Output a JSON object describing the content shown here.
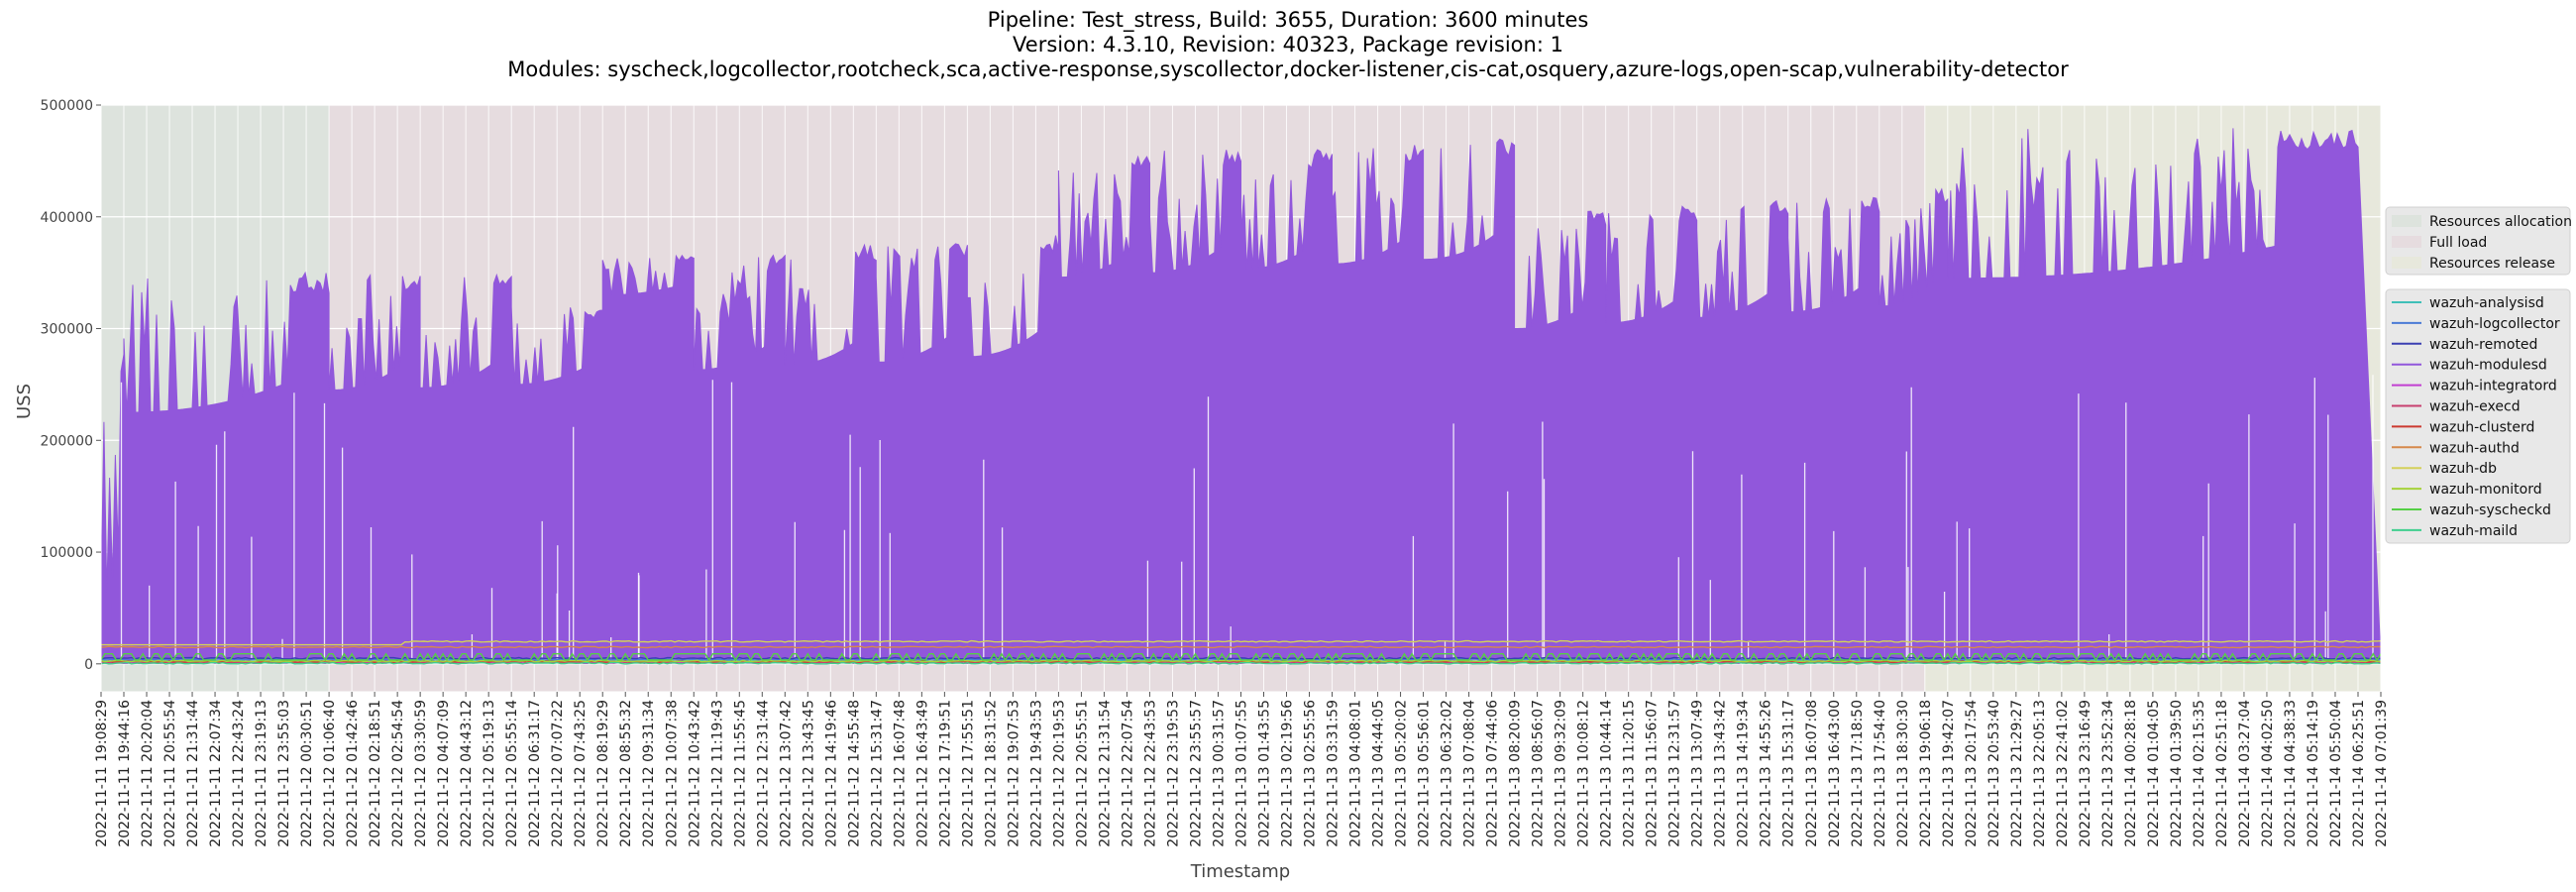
{
  "title_lines": [
    "Pipeline: Test_stress, Build: 3655, Duration: 3600 minutes",
    "Version: 4.3.10, Revision: 40323, Package revision: 1",
    "Modules: syscheck,logcollector,rootcheck,sca,active-response,syscollector,docker-listener,cis-cat,osquery,azure-logs,open-scap,vulnerability-detector"
  ],
  "chart_data": {
    "type": "line",
    "xlabel": "Timestamp",
    "ylabel": "USS",
    "ylim": [
      -25000,
      500000
    ],
    "yticks": [
      0,
      100000,
      200000,
      300000,
      400000,
      500000
    ],
    "grid": true,
    "x_ticklabels": [
      "2022-11-11 19:08:29",
      "2022-11-11 19:44:16",
      "2022-11-11 20:20:04",
      "2022-11-11 20:55:54",
      "2022-11-11 21:31:44",
      "2022-11-11 22:07:34",
      "2022-11-11 22:43:24",
      "2022-11-11 23:19:13",
      "2022-11-11 23:55:03",
      "2022-11-12 00:30:51",
      "2022-11-12 01:06:40",
      "2022-11-12 01:42:46",
      "2022-11-12 02:18:51",
      "2022-11-12 02:54:54",
      "2022-11-12 03:30:59",
      "2022-11-12 04:07:09",
      "2022-11-12 04:43:12",
      "2022-11-12 05:19:13",
      "2022-11-12 05:55:14",
      "2022-11-12 06:31:17",
      "2022-11-12 07:07:22",
      "2022-11-12 07:43:25",
      "2022-11-12 08:19:29",
      "2022-11-12 08:55:32",
      "2022-11-12 09:31:34",
      "2022-11-12 10:07:38",
      "2022-11-12 10:43:42",
      "2022-11-12 11:19:43",
      "2022-11-12 11:55:45",
      "2022-11-12 12:31:44",
      "2022-11-12 13:07:42",
      "2022-11-12 13:43:45",
      "2022-11-12 14:19:46",
      "2022-11-12 14:55:48",
      "2022-11-12 15:31:47",
      "2022-11-12 16:07:48",
      "2022-11-12 16:43:49",
      "2022-11-12 17:19:51",
      "2022-11-12 17:55:51",
      "2022-11-12 18:31:52",
      "2022-11-12 19:07:53",
      "2022-11-12 19:43:53",
      "2022-11-12 20:19:53",
      "2022-11-12 20:55:51",
      "2022-11-12 21:31:54",
      "2022-11-12 22:07:54",
      "2022-11-12 22:43:53",
      "2022-11-12 23:19:53",
      "2022-11-12 23:55:57",
      "2022-11-13 00:31:57",
      "2022-11-13 01:07:55",
      "2022-11-13 01:43:55",
      "2022-11-13 02:19:56",
      "2022-11-13 02:55:56",
      "2022-11-13 03:31:59",
      "2022-11-13 04:08:01",
      "2022-11-13 04:44:05",
      "2022-11-13 05:20:02",
      "2022-11-13 05:56:01",
      "2022-11-13 06:32:02",
      "2022-11-13 07:08:04",
      "2022-11-13 07:44:06",
      "2022-11-13 08:20:09",
      "2022-11-13 08:56:07",
      "2022-11-13 09:32:09",
      "2022-11-13 10:08:12",
      "2022-11-13 10:44:14",
      "2022-11-13 11:20:15",
      "2022-11-13 11:56:07",
      "2022-11-13 12:31:57",
      "2022-11-13 13:07:49",
      "2022-11-13 13:43:42",
      "2022-11-13 14:19:34",
      "2022-11-13 14:55:26",
      "2022-11-13 15:31:17",
      "2022-11-13 16:07:08",
      "2022-11-13 16:43:00",
      "2022-11-13 17:18:50",
      "2022-11-13 17:54:40",
      "2022-11-13 18:30:30",
      "2022-11-13 19:06:18",
      "2022-11-13 19:42:07",
      "2022-11-13 20:17:54",
      "2022-11-13 20:53:40",
      "2022-11-13 21:29:27",
      "2022-11-13 22:05:13",
      "2022-11-13 22:41:02",
      "2022-11-13 23:16:49",
      "2022-11-13 23:52:34",
      "2022-11-14 00:28:18",
      "2022-11-14 01:04:05",
      "2022-11-14 01:39:50",
      "2022-11-14 02:15:35",
      "2022-11-14 02:51:18",
      "2022-11-14 03:27:04",
      "2022-11-14 04:02:50",
      "2022-11-14 04:38:33",
      "2022-11-14 05:14:19",
      "2022-11-14 05:50:04",
      "2022-11-14 06:25:51",
      "2022-11-14 07:01:39"
    ],
    "phases": [
      {
        "name": "Resources allocation",
        "start": "2022-11-11 19:08:29",
        "end": "2022-11-12 01:06:40",
        "color": "#dde3dd"
      },
      {
        "name": "Full load",
        "start": "2022-11-12 01:06:40",
        "end": "2022-11-13 19:06:18",
        "color": "#e6dcdf"
      },
      {
        "name": "Resources release",
        "start": "2022-11-13 19:06:18",
        "end": "2022-11-14 07:01:39",
        "color": "#e7e8dc"
      }
    ],
    "modulesd_segments": [
      {
        "start": 0,
        "end": 1,
        "base": 60000,
        "top": 290000
      },
      {
        "start": 1,
        "end": 10,
        "base": 225000,
        "top": 350000
      },
      {
        "start": 10,
        "end": 14,
        "base": 245000,
        "top": 350000
      },
      {
        "start": 14,
        "end": 18,
        "base": 247000,
        "top": 350000
      },
      {
        "start": 18,
        "end": 22,
        "base": 250000,
        "top": 320000
      },
      {
        "start": 22,
        "end": 26,
        "base": 330000,
        "top": 366000
      },
      {
        "start": 26,
        "end": 30,
        "base": 263000,
        "top": 366000
      },
      {
        "start": 30,
        "end": 34,
        "base": 267000,
        "top": 375000
      },
      {
        "start": 34,
        "end": 38,
        "base": 270000,
        "top": 380000
      },
      {
        "start": 38,
        "end": 42,
        "base": 275000,
        "top": 385000
      },
      {
        "start": 42,
        "end": 46,
        "base": 346000,
        "top": 455000
      },
      {
        "start": 46,
        "end": 50,
        "base": 350000,
        "top": 460000
      },
      {
        "start": 50,
        "end": 54,
        "base": 353000,
        "top": 460000
      },
      {
        "start": 54,
        "end": 58,
        "base": 358000,
        "top": 465000
      },
      {
        "start": 58,
        "end": 62,
        "base": 362000,
        "top": 470000
      },
      {
        "start": 62,
        "end": 66,
        "base": 300000,
        "top": 405000
      },
      {
        "start": 66,
        "end": 70,
        "base": 305000,
        "top": 410000
      },
      {
        "start": 70,
        "end": 74,
        "base": 310000,
        "top": 415000
      },
      {
        "start": 74,
        "end": 78,
        "base": 315000,
        "top": 420000
      },
      {
        "start": 78,
        "end": 81,
        "base": 320000,
        "top": 425000
      },
      {
        "start": 81,
        "end": 99,
        "base": 345000,
        "top": 480000
      }
    ],
    "series": [
      {
        "name": "wazuh-analysisd",
        "color": "#3fbfb8",
        "value": 3000
      },
      {
        "name": "wazuh-logcollector",
        "color": "#4a7ad6",
        "value": 4000
      },
      {
        "name": "wazuh-remoted",
        "color": "#3b3fb2",
        "value": 5000
      },
      {
        "name": "wazuh-modulesd",
        "color": "#9157db",
        "value": 345000
      },
      {
        "name": "wazuh-integratord",
        "color": "#c13fd1",
        "value": 1000
      },
      {
        "name": "wazuh-execd",
        "color": "#c7406f",
        "value": 1500
      },
      {
        "name": "wazuh-clusterd",
        "color": "#cc3a30",
        "value": 2000
      },
      {
        "name": "wazuh-authd",
        "color": "#d6884b",
        "value": 15000
      },
      {
        "name": "wazuh-db",
        "color": "#d4d05a",
        "value": 20000
      },
      {
        "name": "wazuh-monitord",
        "color": "#a6d23a",
        "value": 2500
      },
      {
        "name": "wazuh-syscheckd",
        "color": "#55cf46",
        "value": 5000
      },
      {
        "name": "wazuh-maild",
        "color": "#3fcf8e",
        "value": 500
      }
    ]
  }
}
